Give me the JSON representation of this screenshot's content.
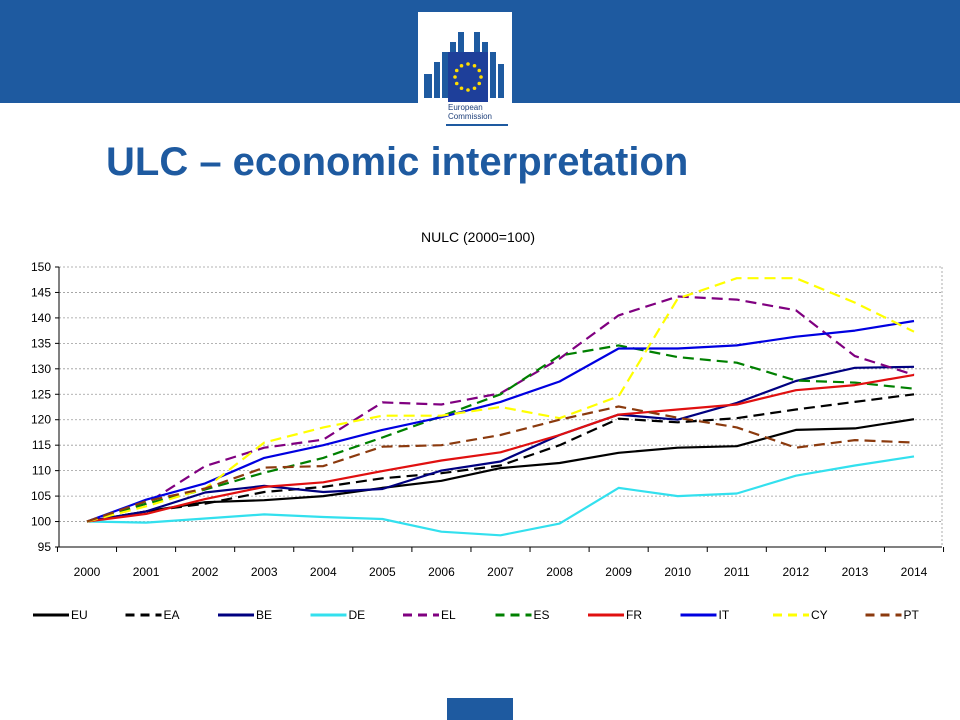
{
  "slide": {
    "title": "ULC – economic interpretation",
    "logo_lines": [
      "European",
      "Commission"
    ]
  },
  "colors": {
    "band": "#1e5aa0",
    "title": "#1e5aa0"
  },
  "chart_data": {
    "type": "line",
    "title": "NULC (2000=100)",
    "xlabel": "",
    "ylabel": "",
    "ylim": [
      95,
      150
    ],
    "yticks": [
      95,
      100,
      105,
      110,
      115,
      120,
      125,
      130,
      135,
      140,
      145,
      150
    ],
    "grid": "horizontal dashed",
    "legend_position": "bottom",
    "x": [
      "2000",
      "2001",
      "2002",
      "2003",
      "2004",
      "2005",
      "2006",
      "2007",
      "2008",
      "2009",
      "2010",
      "2011",
      "2012",
      "2013",
      "2014"
    ],
    "series": [
      {
        "name": "EU",
        "color": "#000000",
        "dash": "solid",
        "values": [
          100,
          102.0,
          103.8,
          104.2,
          105.0,
          106.6,
          108.0,
          110.5,
          111.5,
          113.5,
          114.5,
          114.8,
          118.0,
          118.3,
          120.1
        ]
      },
      {
        "name": "EA",
        "color": "#000000",
        "dash": "dashed",
        "values": [
          100,
          102.0,
          103.5,
          105.8,
          106.8,
          108.5,
          109.5,
          111.0,
          115.0,
          120.2,
          119.5,
          120.3,
          122.0,
          123.5,
          125.0
        ]
      },
      {
        "name": "BE",
        "color": "#000080",
        "dash": "solid",
        "values": [
          100,
          102.0,
          105.7,
          107.0,
          105.8,
          106.4,
          110.0,
          111.8,
          117.0,
          121.0,
          120.0,
          123.3,
          127.6,
          130.2,
          130.4
        ]
      },
      {
        "name": "DE",
        "color": "#33e0ee",
        "dash": "solid",
        "values": [
          100,
          99.8,
          100.6,
          101.4,
          100.9,
          100.5,
          98.0,
          97.3,
          99.6,
          106.6,
          105.0,
          105.5,
          109.0,
          111.0,
          112.8
        ]
      },
      {
        "name": "EL",
        "color": "#800080",
        "dash": "dashed",
        "values": [
          100,
          103.5,
          110.9,
          114.5,
          116.1,
          123.4,
          123.0,
          125.2,
          132.0,
          140.5,
          144.2,
          143.6,
          141.5,
          132.5,
          128.8
        ]
      },
      {
        "name": "ES",
        "color": "#008000",
        "dash": "dashed",
        "values": [
          100,
          103.5,
          106.3,
          109.6,
          112.5,
          116.5,
          120.7,
          125.0,
          132.6,
          134.6,
          132.3,
          131.2,
          127.7,
          127.3,
          126.1
        ]
      },
      {
        "name": "FR",
        "color": "#e01010",
        "dash": "solid",
        "values": [
          100,
          101.5,
          104.4,
          106.8,
          107.7,
          109.9,
          112.0,
          113.6,
          117.0,
          121.0,
          122.0,
          123.0,
          125.8,
          126.8,
          128.8
        ]
      },
      {
        "name": "IT",
        "color": "#0000e0",
        "dash": "solid",
        "values": [
          100,
          104.3,
          107.5,
          112.5,
          115.0,
          118.0,
          120.5,
          123.5,
          127.5,
          134.0,
          134.0,
          134.6,
          136.3,
          137.5,
          139.4
        ]
      },
      {
        "name": "CY",
        "color": "#ffff00",
        "dash": "dashed",
        "values": [
          100,
          103.0,
          106.5,
          115.5,
          118.5,
          120.8,
          120.8,
          122.5,
          120.3,
          124.6,
          143.8,
          147.8,
          147.8,
          143.0,
          137.3
        ]
      },
      {
        "name": "PT",
        "color": "#8b3a0e",
        "dash": "dashed",
        "values": [
          100,
          104.0,
          106.5,
          110.6,
          110.9,
          114.7,
          115.0,
          117.0,
          120.0,
          122.6,
          120.4,
          118.5,
          114.5,
          116.0,
          115.5
        ]
      }
    ]
  }
}
